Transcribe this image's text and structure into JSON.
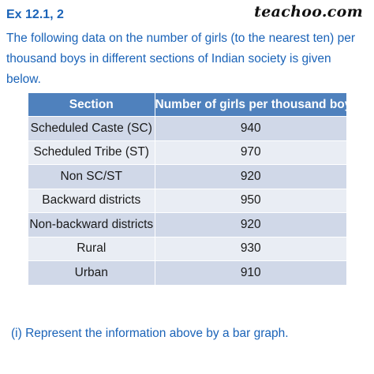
{
  "header": {
    "exercise_label": "Ex 12.1, 2",
    "logo_text": "teachoo.com"
  },
  "intro_text": "The following data on the number of girls (to the nearest ten) per thousand boys in different sections of Indian society is given below.",
  "table": {
    "headers": [
      "Section",
      "Number of girls per thousand boys"
    ],
    "rows": [
      {
        "section": "Scheduled Caste (SC)",
        "value": "940"
      },
      {
        "section": "Scheduled Tribe (ST)",
        "value": "970"
      },
      {
        "section": "Non SC/ST",
        "value": "920"
      },
      {
        "section": "Backward districts",
        "value": "950"
      },
      {
        "section": "Non-backward districts",
        "value": "920"
      },
      {
        "section": "Rural",
        "value": "930"
      },
      {
        "section": "Urban",
        "value": "910"
      }
    ]
  },
  "question_text": "(i) Represent the information above by a bar graph.",
  "colors": {
    "text_blue": "#1a63b8",
    "header_fill": "#4f81bd",
    "row_odd": "#d0d8e8",
    "row_even": "#e9edf4"
  }
}
